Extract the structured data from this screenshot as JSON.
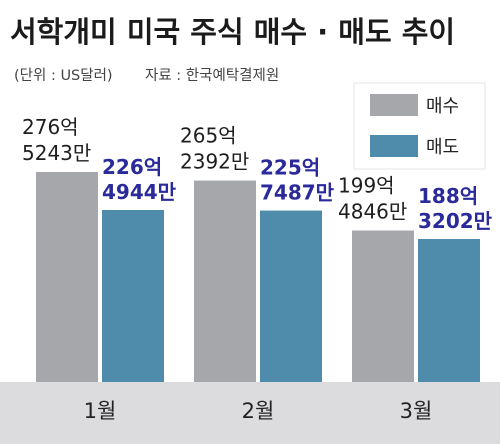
{
  "title": "서학개미 미국 주식 매수 · 매도 추이",
  "subtitle_unit": "(단위 : US달러)",
  "subtitle_source": "자료 : 한국예탁결제원",
  "colors": {
    "buy": "#a6a7aa",
    "sell": "#4f8cab",
    "sell_label": "#2a2a9a",
    "axis_bg": "#dcdcde"
  },
  "legend": [
    {
      "label": "매수",
      "color": "#a6a7aa"
    },
    {
      "label": "매도",
      "color": "#4f8cab"
    }
  ],
  "chart_data": {
    "type": "bar",
    "title": "서학개미 미국 주식 매수 · 매도 추이",
    "categories": [
      "1월",
      "2월",
      "3월"
    ],
    "series": [
      {
        "name": "매수",
        "values": [
          27652430000,
          26523920000,
          19948460000
        ],
        "labels": [
          [
            "276억",
            "5243만"
          ],
          [
            "265억",
            "2392만"
          ],
          [
            "199억",
            "4846만"
          ]
        ]
      },
      {
        "name": "매도",
        "values": [
          22649440000,
          22574870000,
          18832020000
        ],
        "labels": [
          [
            "226억",
            "4944만"
          ],
          [
            "225억",
            "7487만"
          ],
          [
            "188억",
            "3202만"
          ]
        ]
      }
    ],
    "ylabel": "",
    "xlabel": "",
    "legend_position": "top-right",
    "grid": false
  }
}
